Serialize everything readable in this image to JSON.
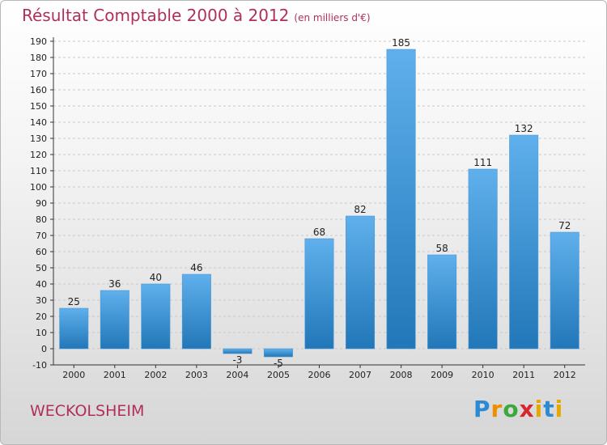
{
  "title": "Résultat Comptable 2000 à 2012",
  "unit": "(en milliers d'€)",
  "commune": "WECKOLSHEIM",
  "logo": "Proxiti",
  "colors": {
    "title": "#b0305a",
    "bar_top": "#5fb0ec",
    "bar_bottom": "#2277b8"
  },
  "chart_data": {
    "type": "bar",
    "title": "Résultat Comptable 2000 à 2012",
    "subtitle": "(en milliers d'€)",
    "xlabel": "",
    "ylabel": "",
    "categories": [
      "2000",
      "2001",
      "2002",
      "2003",
      "2004",
      "2005",
      "2006",
      "2007",
      "2008",
      "2009",
      "2010",
      "2011",
      "2012"
    ],
    "values": [
      25,
      36,
      40,
      46,
      -3,
      -5,
      68,
      82,
      185,
      58,
      111,
      132,
      72
    ],
    "ylim": [
      -10,
      190
    ],
    "yticks": [
      -10,
      0,
      10,
      20,
      30,
      40,
      50,
      60,
      70,
      80,
      90,
      100,
      110,
      120,
      130,
      140,
      150,
      160,
      170,
      180,
      190
    ],
    "grid": true,
    "legend": "none"
  }
}
